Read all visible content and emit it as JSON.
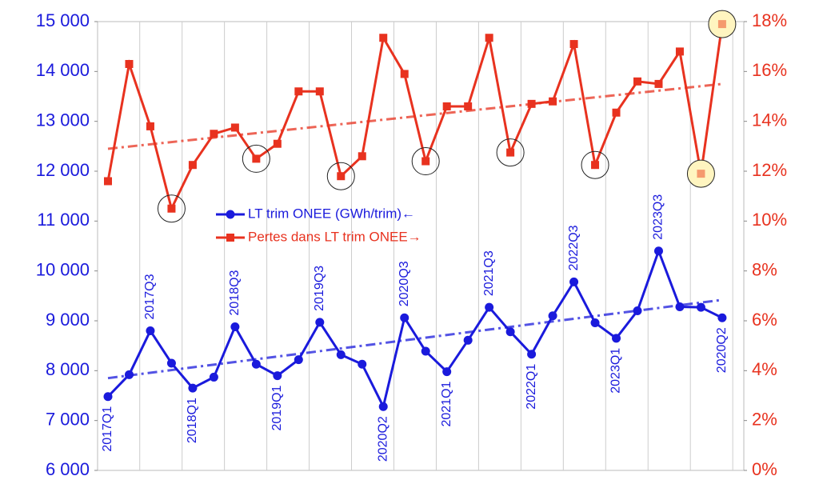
{
  "chart_data": {
    "type": "line",
    "categories": [
      "2017Q1",
      null,
      "2017Q3",
      null,
      "2018Q1",
      null,
      "2018Q3",
      null,
      "2019Q1",
      null,
      "2019Q3",
      null,
      null,
      "2020Q2",
      "2020Q3",
      null,
      "2021Q1",
      null,
      "2021Q3",
      null,
      "2022Q1",
      null,
      "2022Q3",
      null,
      "2023Q1",
      null,
      "2023Q3",
      null,
      null,
      "2020Q2"
    ],
    "ylim": [
      6000,
      15000
    ],
    "yticks": [
      {
        "value": 6000,
        "label": "6 000"
      },
      {
        "value": 7000,
        "label": "7 000"
      },
      {
        "value": 8000,
        "label": "8 000"
      },
      {
        "value": 9000,
        "label": "9 000"
      },
      {
        "value": 10000,
        "label": "10 000"
      },
      {
        "value": 11000,
        "label": "11 000"
      },
      {
        "value": 12000,
        "label": "12 000"
      },
      {
        "value": 13000,
        "label": "13 000"
      },
      {
        "value": 14000,
        "label": "14 000"
      },
      {
        "value": 15000,
        "label": "15 000"
      }
    ],
    "y2lim": [
      0,
      18
    ],
    "y2ticks": [
      {
        "value": 0,
        "label": "0%"
      },
      {
        "value": 2,
        "label": "2%"
      },
      {
        "value": 4,
        "label": "4%"
      },
      {
        "value": 6,
        "label": "6%"
      },
      {
        "value": 8,
        "label": "8%"
      },
      {
        "value": 10,
        "label": "10%"
      },
      {
        "value": 12,
        "label": "12%"
      },
      {
        "value": 14,
        "label": "14%"
      },
      {
        "value": 16,
        "label": "16%"
      },
      {
        "value": 18,
        "label": "18%"
      }
    ],
    "series": [
      {
        "name": "LT trim ONEE (GWh/trim)←",
        "color": "#1a1adc",
        "marker": "circle",
        "values": [
          7480,
          7920,
          8800,
          8150,
          7650,
          7870,
          8880,
          8130,
          7900,
          8220,
          8970,
          8320,
          8130,
          7280,
          9060,
          8390,
          7980,
          8610,
          9270,
          8780,
          8330,
          9100,
          9780,
          8960,
          8650,
          9200,
          10400,
          9280,
          9270,
          9060
        ],
        "trend": [
          7850,
          9420
        ]
      },
      {
        "name": "Pertes dans LT trim ONEE→",
        "color": "#e8321f",
        "marker": "square",
        "axis": "y2",
        "values": [
          11.6,
          16.3,
          13.8,
          10.5,
          12.25,
          13.5,
          13.75,
          12.5,
          13.1,
          15.2,
          15.2,
          11.8,
          12.6,
          17.35,
          15.9,
          12.4,
          14.6,
          14.6,
          17.35,
          12.75,
          14.7,
          14.8,
          17.1,
          12.25,
          14.35,
          15.6,
          15.5,
          16.8,
          11.9,
          17.9
        ],
        "trend": [
          12.9,
          15.5
        ],
        "circled": [
          3,
          7,
          11,
          15,
          19,
          23
        ],
        "highlighted": [
          28,
          29
        ]
      }
    ]
  }
}
